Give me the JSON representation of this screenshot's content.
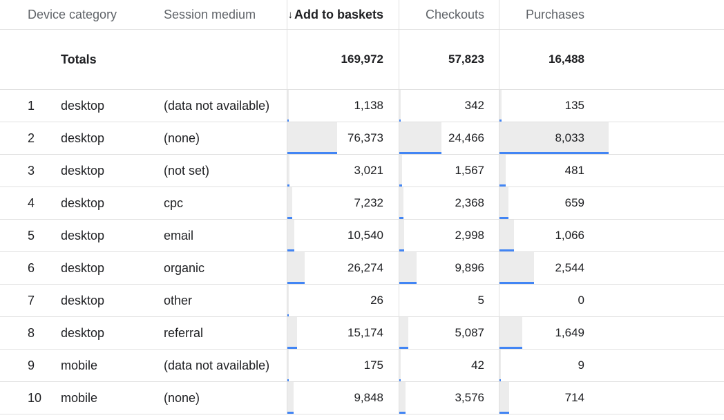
{
  "columns": {
    "device_category": "Device category",
    "session_medium": "Session medium",
    "add_to_baskets": "Add to baskets",
    "checkouts": "Checkouts",
    "purchases": "Purchases"
  },
  "sort": {
    "column": "add_to_baskets",
    "direction": "descending",
    "icon": "arrow-down-icon"
  },
  "totals": {
    "label": "Totals",
    "add_to_baskets": "169,972",
    "checkouts": "57,823",
    "purchases": "16,488"
  },
  "rows": [
    {
      "index": "1",
      "device": "desktop",
      "medium": "(data not available)",
      "add_to_baskets": "1,138",
      "checkouts": "342",
      "purchases": "135",
      "atb_share": 0.0067,
      "chk_share": 0.0059,
      "pur_share": 0.0082
    },
    {
      "index": "2",
      "device": "desktop",
      "medium": "(none)",
      "add_to_baskets": "76,373",
      "checkouts": "24,466",
      "purchases": "8,033",
      "atb_share": 0.4493,
      "chk_share": 0.4231,
      "pur_share": 0.4872
    },
    {
      "index": "3",
      "device": "desktop",
      "medium": "(not set)",
      "add_to_baskets": "3,021",
      "checkouts": "1,567",
      "purchases": "481",
      "atb_share": 0.0178,
      "chk_share": 0.0271,
      "pur_share": 0.0292
    },
    {
      "index": "4",
      "device": "desktop",
      "medium": "cpc",
      "add_to_baskets": "7,232",
      "checkouts": "2,368",
      "purchases": "659",
      "atb_share": 0.0425,
      "chk_share": 0.041,
      "pur_share": 0.04
    },
    {
      "index": "5",
      "device": "desktop",
      "medium": "email",
      "add_to_baskets": "10,540",
      "checkouts": "2,998",
      "purchases": "1,066",
      "atb_share": 0.062,
      "chk_share": 0.0518,
      "pur_share": 0.0647
    },
    {
      "index": "6",
      "device": "desktop",
      "medium": "organic",
      "add_to_baskets": "26,274",
      "checkouts": "9,896",
      "purchases": "2,544",
      "atb_share": 0.1546,
      "chk_share": 0.1711,
      "pur_share": 0.1543
    },
    {
      "index": "7",
      "device": "desktop",
      "medium": "other",
      "add_to_baskets": "26",
      "checkouts": "5",
      "purchases": "0",
      "atb_share": 0.0002,
      "chk_share": 0.0001,
      "pur_share": 0
    },
    {
      "index": "8",
      "device": "desktop",
      "medium": "referral",
      "add_to_baskets": "15,174",
      "checkouts": "5,087",
      "purchases": "1,649",
      "atb_share": 0.0893,
      "chk_share": 0.088,
      "pur_share": 0.1
    },
    {
      "index": "9",
      "device": "mobile",
      "medium": "(data not available)",
      "add_to_baskets": "175",
      "checkouts": "42",
      "purchases": "9",
      "atb_share": 0.001,
      "chk_share": 0.0007,
      "pur_share": 0.0005
    },
    {
      "index": "10",
      "device": "mobile",
      "medium": "(none)",
      "add_to_baskets": "9,848",
      "checkouts": "3,576",
      "purchases": "714",
      "atb_share": 0.0579,
      "chk_share": 0.0618,
      "pur_share": 0.0433
    }
  ],
  "colors": {
    "bar_fill": "#ececec",
    "bar_accent": "#4285f4",
    "header_text": "#5f6368",
    "grid": "#e0e0e0"
  }
}
